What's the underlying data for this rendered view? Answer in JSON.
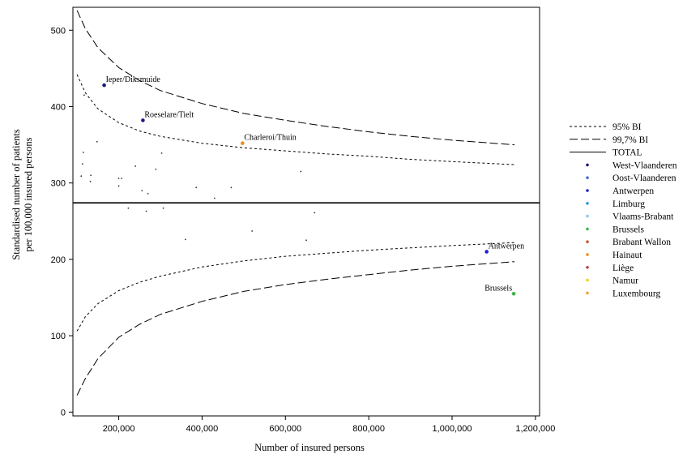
{
  "chart_data": {
    "type": "scatter",
    "title": "",
    "xlabel": "Number of insured persons",
    "ylabel_lines": [
      "Standardised number of patients",
      "per 100,000 insured persons"
    ],
    "xlim": [
      90000,
      1210000
    ],
    "ylim": [
      -5,
      530
    ],
    "x_ticks": [
      200000,
      400000,
      600000,
      800000,
      1000000,
      1200000
    ],
    "x_tick_labels": [
      "200,000",
      "400,000",
      "600,000",
      "800,000",
      "1,000,000",
      "1,200,000"
    ],
    "y_ticks": [
      0,
      100,
      200,
      300,
      400,
      500
    ],
    "y_tick_labels": [
      "0",
      "100",
      "200",
      "300",
      "400",
      "500"
    ],
    "grid": false,
    "total": 274,
    "legend_position": "right",
    "legend": [
      {
        "label": "95% BI",
        "kind": "line",
        "dash": "3,3"
      },
      {
        "label": "99,7% BI",
        "kind": "line",
        "dash": "10,4"
      },
      {
        "label": "TOTAL",
        "kind": "line",
        "dash": ""
      },
      {
        "label": "West-Vlaanderen",
        "kind": "dot",
        "color": "#1a1a80"
      },
      {
        "label": "Oost-Vlaanderen",
        "kind": "dot",
        "color": "#4a6fd1"
      },
      {
        "label": "Antwerpen",
        "kind": "dot",
        "color": "#1f1fd6"
      },
      {
        "label": "Limburg",
        "kind": "dot",
        "color": "#2e9ad6"
      },
      {
        "label": "Vlaams-Brabant",
        "kind": "dot",
        "color": "#87cde8"
      },
      {
        "label": "Brussels",
        "kind": "dot",
        "color": "#3cb54a"
      },
      {
        "label": "Brabant Wallon",
        "kind": "dot",
        "color": "#c85a32"
      },
      {
        "label": "Hainaut",
        "kind": "dot",
        "color": "#f08a1c"
      },
      {
        "label": "Liège",
        "kind": "dot",
        "color": "#b34a4a"
      },
      {
        "label": "Namur",
        "kind": "dot",
        "color": "#f2d21b"
      },
      {
        "label": "Luxembourg",
        "kind": "dot",
        "color": "#f0a030"
      }
    ],
    "bands": [
      {
        "name": "95% BI",
        "side": "upper",
        "points": [
          [
            100000,
            442
          ],
          [
            120000,
            418
          ],
          [
            150000,
            397
          ],
          [
            200000,
            379
          ],
          [
            250000,
            368
          ],
          [
            300000,
            361
          ],
          [
            400000,
            352
          ],
          [
            500000,
            346
          ],
          [
            600000,
            342
          ],
          [
            700000,
            338
          ],
          [
            800000,
            335
          ],
          [
            900000,
            331
          ],
          [
            1000000,
            328
          ],
          [
            1150000,
            324
          ]
        ]
      },
      {
        "name": "95% BI",
        "side": "lower",
        "points": [
          [
            100000,
            106
          ],
          [
            120000,
            125
          ],
          [
            150000,
            142
          ],
          [
            200000,
            159
          ],
          [
            250000,
            170
          ],
          [
            300000,
            178
          ],
          [
            400000,
            190
          ],
          [
            500000,
            198
          ],
          [
            600000,
            204
          ],
          [
            700000,
            208
          ],
          [
            800000,
            212
          ],
          [
            900000,
            215
          ],
          [
            1000000,
            218
          ],
          [
            1150000,
            222
          ]
        ]
      },
      {
        "name": "99,7% BI",
        "side": "upper",
        "points": [
          [
            100000,
            526
          ],
          [
            120000,
            502
          ],
          [
            150000,
            477
          ],
          [
            200000,
            451
          ],
          [
            250000,
            434
          ],
          [
            300000,
            421
          ],
          [
            400000,
            404
          ],
          [
            500000,
            391
          ],
          [
            600000,
            382
          ],
          [
            700000,
            374
          ],
          [
            800000,
            367
          ],
          [
            900000,
            361
          ],
          [
            1000000,
            356
          ],
          [
            1150000,
            350
          ]
        ]
      },
      {
        "name": "99,7% BI",
        "side": "lower",
        "points": [
          [
            100000,
            22
          ],
          [
            120000,
            44
          ],
          [
            150000,
            70
          ],
          [
            200000,
            98
          ],
          [
            250000,
            115
          ],
          [
            300000,
            128
          ],
          [
            400000,
            145
          ],
          [
            500000,
            158
          ],
          [
            600000,
            167
          ],
          [
            700000,
            174
          ],
          [
            800000,
            180
          ],
          [
            900000,
            186
          ],
          [
            1000000,
            191
          ],
          [
            1150000,
            197
          ]
        ]
      }
    ],
    "points": [
      {
        "x": 165000,
        "y": 428,
        "color": "#1a1a80",
        "label": "Ieper/Diksmuide",
        "large": true
      },
      {
        "x": 258000,
        "y": 382,
        "color": "#1a1a80",
        "label": "Roeselare/Tielt",
        "large": true
      },
      {
        "x": 497000,
        "y": 352,
        "color": "#f08a1c",
        "label": "Charleroi/Thuin",
        "large": true
      },
      {
        "x": 1083000,
        "y": 210,
        "color": "#1f1fd6",
        "label": "Antwerpen",
        "large": true
      },
      {
        "x": 1148000,
        "y": 155,
        "color": "#3cb54a",
        "label": "Brussels",
        "large": true
      },
      {
        "x": 117000,
        "y": 415,
        "color": "#333333"
      },
      {
        "x": 148000,
        "y": 354,
        "color": "#333333"
      },
      {
        "x": 115000,
        "y": 340,
        "color": "#333333"
      },
      {
        "x": 113000,
        "y": 325,
        "color": "#333333"
      },
      {
        "x": 110000,
        "y": 309,
        "color": "#333333"
      },
      {
        "x": 133000,
        "y": 310,
        "color": "#333333"
      },
      {
        "x": 132000,
        "y": 302,
        "color": "#333333"
      },
      {
        "x": 200000,
        "y": 306,
        "color": "#333333"
      },
      {
        "x": 207000,
        "y": 306,
        "color": "#333333"
      },
      {
        "x": 200000,
        "y": 296,
        "color": "#333333"
      },
      {
        "x": 240000,
        "y": 322,
        "color": "#333333"
      },
      {
        "x": 256000,
        "y": 290,
        "color": "#333333"
      },
      {
        "x": 270000,
        "y": 286,
        "color": "#333333"
      },
      {
        "x": 289000,
        "y": 318,
        "color": "#333333"
      },
      {
        "x": 303000,
        "y": 339,
        "color": "#333333"
      },
      {
        "x": 386000,
        "y": 294,
        "color": "#333333"
      },
      {
        "x": 430000,
        "y": 280,
        "color": "#333333"
      },
      {
        "x": 470000,
        "y": 294,
        "color": "#333333"
      },
      {
        "x": 637000,
        "y": 315,
        "color": "#333333"
      },
      {
        "x": 223000,
        "y": 267,
        "color": "#333333"
      },
      {
        "x": 266000,
        "y": 263,
        "color": "#333333"
      },
      {
        "x": 307000,
        "y": 267,
        "color": "#333333"
      },
      {
        "x": 670000,
        "y": 261,
        "color": "#333333"
      },
      {
        "x": 360000,
        "y": 226,
        "color": "#333333"
      },
      {
        "x": 520000,
        "y": 237,
        "color": "#333333"
      },
      {
        "x": 650000,
        "y": 225,
        "color": "#333333"
      }
    ]
  }
}
